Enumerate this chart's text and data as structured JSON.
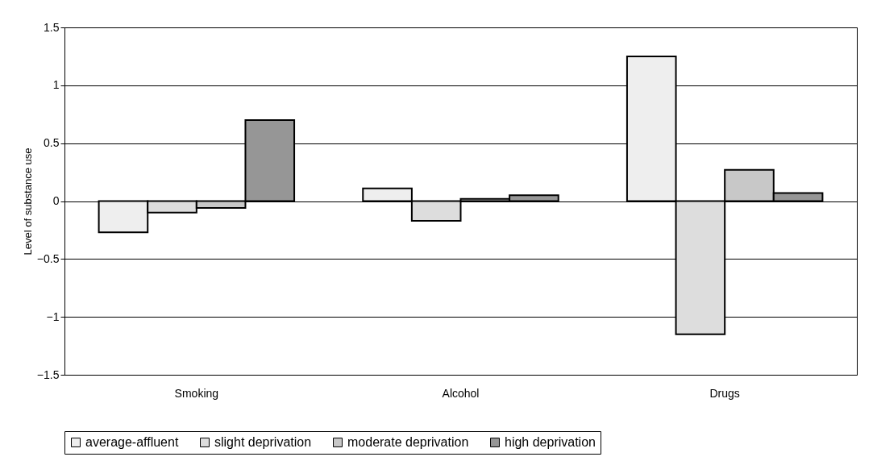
{
  "chart_data": {
    "type": "bar",
    "ylabel": "Level of substance use",
    "categories": [
      "Smoking",
      "Alcohol",
      "Drugs"
    ],
    "series": [
      {
        "name": "average-affluent",
        "color": "#eeeeee",
        "values": [
          -0.27,
          0.11,
          1.25
        ]
      },
      {
        "name": "slight deprivation",
        "color": "#dddddd",
        "values": [
          -0.1,
          -0.17,
          -1.15
        ]
      },
      {
        "name": "moderate deprivation",
        "color": "#c8c8c8",
        "values": [
          -0.06,
          0.02,
          0.27
        ]
      },
      {
        "name": "high deprivation",
        "color": "#969696",
        "values": [
          0.7,
          0.05,
          0.07
        ]
      }
    ],
    "ylim": [
      -1.5,
      1.5
    ],
    "yticks": [
      -1.5,
      -1,
      -0.5,
      0,
      0.5,
      1,
      1.5
    ],
    "grid": "y",
    "legend": "bottom"
  }
}
